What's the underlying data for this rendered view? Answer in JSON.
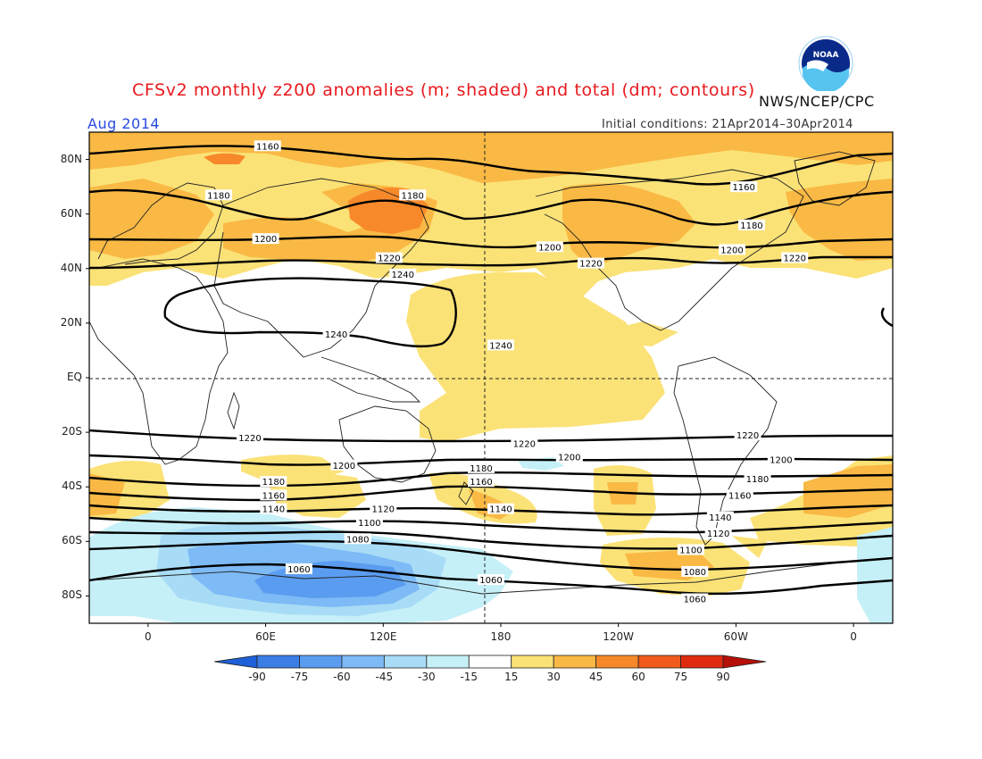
{
  "header": {
    "title": "CFSv2 monthly z200 anomalies (m; shaded) and total (dm; contours)",
    "agency": "NWS/NCEP/CPC",
    "month": "Aug 2014",
    "initial_conditions": "Initial conditions: 21Apr2014–30Apr2014",
    "logo_text": "NOAA"
  },
  "axes": {
    "y_ticks": [
      {
        "label": "80N",
        "lat": 80
      },
      {
        "label": "60N",
        "lat": 60
      },
      {
        "label": "40N",
        "lat": 40
      },
      {
        "label": "20N",
        "lat": 20
      },
      {
        "label": "EQ",
        "lat": 0
      },
      {
        "label": "20S",
        "lat": -20
      },
      {
        "label": "40S",
        "lat": -40
      },
      {
        "label": "60S",
        "lat": -60
      },
      {
        "label": "80S",
        "lat": -80
      }
    ],
    "x_ticks": [
      {
        "label": "0",
        "lon": 0
      },
      {
        "label": "60E",
        "lon": 60
      },
      {
        "label": "120E",
        "lon": 120
      },
      {
        "label": "180",
        "lon": 180
      },
      {
        "label": "120W",
        "lon": 240
      },
      {
        "label": "60W",
        "lon": 300
      },
      {
        "label": "0",
        "lon": 360
      }
    ],
    "lon_range": [
      -30,
      380
    ],
    "lat_range": [
      -90,
      90
    ]
  },
  "contour_labels": [
    {
      "text": "1160",
      "lon": 61,
      "lat": 85
    },
    {
      "text": "1180",
      "lon": 36,
      "lat": 67
    },
    {
      "text": "1180",
      "lon": 135,
      "lat": 67
    },
    {
      "text": "1200",
      "lon": 60,
      "lat": 51
    },
    {
      "text": "1220",
      "lon": 123,
      "lat": 44
    },
    {
      "text": "1240",
      "lon": 130,
      "lat": 38
    },
    {
      "text": "1240",
      "lon": 96,
      "lat": 16
    },
    {
      "text": "1240",
      "lon": 180,
      "lat": 12
    },
    {
      "text": "1200",
      "lon": 205,
      "lat": 48
    },
    {
      "text": "1220",
      "lon": 226,
      "lat": 42
    },
    {
      "text": "1160",
      "lon": 304,
      "lat": 70
    },
    {
      "text": "1180",
      "lon": 308,
      "lat": 56
    },
    {
      "text": "1200",
      "lon": 298,
      "lat": 47
    },
    {
      "text": "1220",
      "lon": 330,
      "lat": 44
    },
    {
      "text": "1220",
      "lon": 52,
      "lat": -22
    },
    {
      "text": "1220",
      "lon": 192,
      "lat": -24
    },
    {
      "text": "1220",
      "lon": 306,
      "lat": -21
    },
    {
      "text": "1200",
      "lon": 100,
      "lat": -32
    },
    {
      "text": "1200",
      "lon": 215,
      "lat": -29
    },
    {
      "text": "1200",
      "lon": 323,
      "lat": -30
    },
    {
      "text": "1180",
      "lon": 64,
      "lat": -38
    },
    {
      "text": "1180",
      "lon": 170,
      "lat": -33
    },
    {
      "text": "1180",
      "lon": 311,
      "lat": -37
    },
    {
      "text": "1160",
      "lon": 64,
      "lat": -43
    },
    {
      "text": "1160",
      "lon": 170,
      "lat": -38
    },
    {
      "text": "1160",
      "lon": 302,
      "lat": -43
    },
    {
      "text": "1140",
      "lon": 64,
      "lat": -48
    },
    {
      "text": "1140",
      "lon": 180,
      "lat": -48
    },
    {
      "text": "1140",
      "lon": 292,
      "lat": -51
    },
    {
      "text": "1120",
      "lon": 120,
      "lat": -48
    },
    {
      "text": "1120",
      "lon": 291,
      "lat": -57
    },
    {
      "text": "1100",
      "lon": 113,
      "lat": -53
    },
    {
      "text": "1100",
      "lon": 277,
      "lat": -63
    },
    {
      "text": "1080",
      "lon": 107,
      "lat": -59
    },
    {
      "text": "1080",
      "lon": 279,
      "lat": -71
    },
    {
      "text": "1060",
      "lon": 77,
      "lat": -70
    },
    {
      "text": "1060",
      "lon": 175,
      "lat": -74
    },
    {
      "text": "1060",
      "lon": 279,
      "lat": -81
    }
  ],
  "colorbar": {
    "labels": [
      "-90",
      "-75",
      "-60",
      "-45",
      "-30",
      "-15",
      "15",
      "30",
      "45",
      "60",
      "75",
      "90"
    ],
    "colors": [
      "#1d60d8",
      "#3a7ee6",
      "#5a9cf0",
      "#7dbaf6",
      "#a8dcf6",
      "#c6f0f8",
      "#ffffff",
      "#fbe277",
      "#f9b944",
      "#f7892b",
      "#f05a1a",
      "#e02b10",
      "#b41008"
    ]
  }
}
